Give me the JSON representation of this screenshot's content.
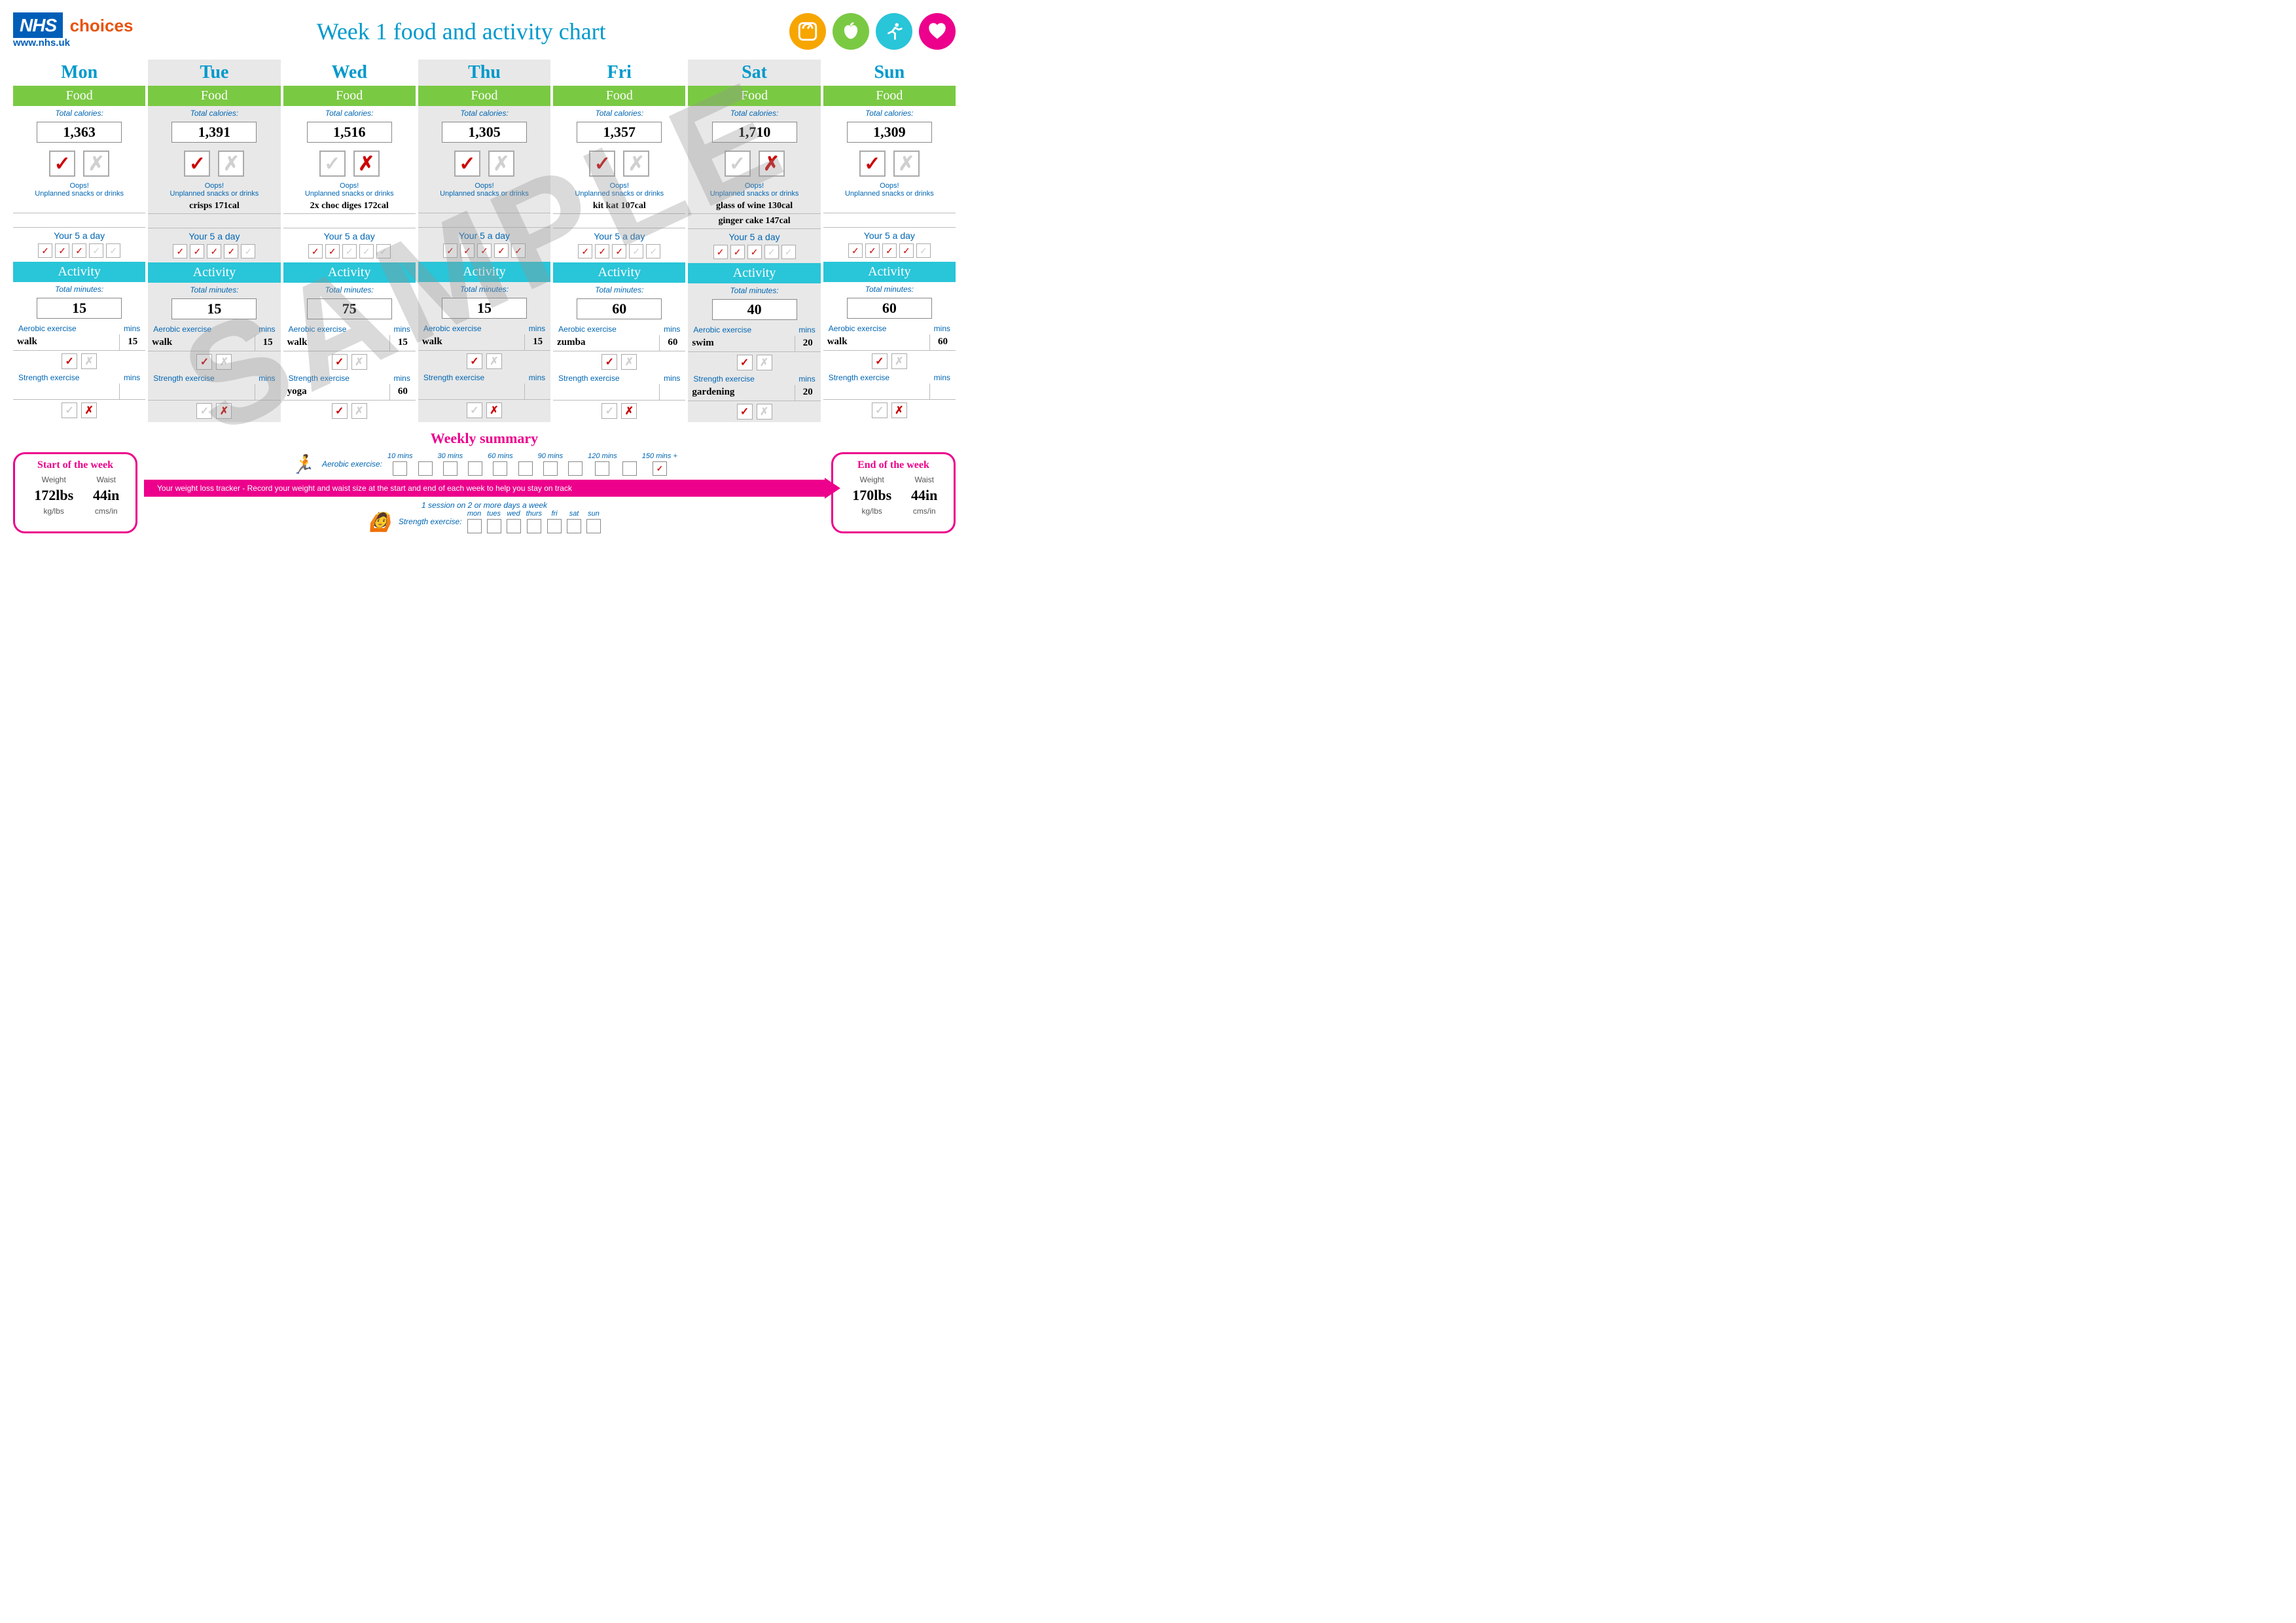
{
  "colors": {
    "nhs_blue": "#005eb8",
    "choices_orange": "#e8530e",
    "title_blue": "#0099cc",
    "link_blue": "#0066b3",
    "green": "#7ac943",
    "teal": "#29c5d8",
    "pink": "#ec008c",
    "badge_orange": "#f7a600",
    "badge_green": "#7ac943",
    "badge_teal": "#29c5d8",
    "badge_pink": "#ec008c",
    "tick_red": "#cc0000",
    "inactive_grey": "#d0d0d0",
    "watermark_grey": "rgba(150,150,150,0.35)"
  },
  "header": {
    "nhs": "NHS",
    "choices": "choices",
    "url": "www.nhs.uk",
    "title": "Week 1 food and activity chart"
  },
  "labels": {
    "food": "Food",
    "activity": "Activity",
    "total_cal": "Total calories:",
    "total_min": "Total minutes:",
    "oops": "Oops!",
    "oops_sub": "Unplanned snacks or drinks",
    "five": "Your 5 a day",
    "aerobic": "Aerobic exercise",
    "strength": "Strength exercise",
    "mins": "mins"
  },
  "watermark": "SAMPLE",
  "days": [
    {
      "name": "Mon",
      "shade": false,
      "cal": "1,363",
      "target": true,
      "snacks": [
        "",
        ""
      ],
      "five": 3,
      "min": "15",
      "aero": {
        "name": "walk",
        "min": "15"
      },
      "aero_ok": true,
      "str": {
        "name": "",
        "min": ""
      },
      "str_ok": false
    },
    {
      "name": "Tue",
      "shade": true,
      "cal": "1,391",
      "target": true,
      "snacks": [
        "crisps 171cal",
        ""
      ],
      "five": 4,
      "min": "15",
      "aero": {
        "name": "walk",
        "min": "15"
      },
      "aero_ok": true,
      "str": {
        "name": "",
        "min": ""
      },
      "str_ok": false
    },
    {
      "name": "Wed",
      "shade": false,
      "cal": "1,516",
      "target": false,
      "snacks": [
        "2x choc diges 172cal",
        ""
      ],
      "five": 2,
      "min": "75",
      "aero": {
        "name": "walk",
        "min": "15"
      },
      "aero_ok": true,
      "str": {
        "name": "yoga",
        "min": "60"
      },
      "str_ok": true
    },
    {
      "name": "Thu",
      "shade": true,
      "cal": "1,305",
      "target": true,
      "snacks": [
        "",
        ""
      ],
      "five": 5,
      "min": "15",
      "aero": {
        "name": "walk",
        "min": "15"
      },
      "aero_ok": true,
      "str": {
        "name": "",
        "min": ""
      },
      "str_ok": false
    },
    {
      "name": "Fri",
      "shade": false,
      "cal": "1,357",
      "target": true,
      "snacks": [
        "kit kat 107cal",
        ""
      ],
      "five": 3,
      "min": "60",
      "aero": {
        "name": "zumba",
        "min": "60"
      },
      "aero_ok": true,
      "str": {
        "name": "",
        "min": ""
      },
      "str_ok": false
    },
    {
      "name": "Sat",
      "shade": true,
      "cal": "1,710",
      "target": false,
      "snacks": [
        "glass of wine 130cal",
        "ginger cake  147cal"
      ],
      "five": 3,
      "min": "40",
      "aero": {
        "name": "swim",
        "min": "20"
      },
      "aero_ok": true,
      "str": {
        "name": "gardening",
        "min": "20"
      },
      "str_ok": true
    },
    {
      "name": "Sun",
      "shade": false,
      "cal": "1,309",
      "target": true,
      "snacks": [
        "",
        ""
      ],
      "five": 4,
      "min": "60",
      "aero": {
        "name": "walk",
        "min": "60"
      },
      "aero_ok": true,
      "str": {
        "name": "",
        "min": ""
      },
      "str_ok": false
    }
  ],
  "summary": {
    "title": "Weekly summary",
    "start": {
      "title": "Start of the week",
      "weight_lbl": "Weight",
      "waist_lbl": "Waist",
      "weight": "172lbs",
      "waist": "44in",
      "u1": "kg/lbs",
      "u2": "cms/in"
    },
    "end": {
      "title": "End of the week",
      "weight_lbl": "Weight",
      "waist_lbl": "Waist",
      "weight": "170lbs",
      "waist": "44in",
      "u1": "kg/lbs",
      "u2": "cms/in"
    },
    "aerobic_lbl": "Aerobic exercise:",
    "aerobic_ticks": [
      "10 mins",
      "",
      "30 mins",
      "",
      "60 mins",
      "",
      "90 mins",
      "",
      "120 mins",
      "",
      "150 mins +"
    ],
    "aerobic_checked": 10,
    "tracker": "Your weight loss tracker - Record your weight and waist size at the start and end of each week to help you stay on track",
    "session_note": "1 session on 2 or more days a week",
    "strength_lbl": "Strength exercise:",
    "strength_days": [
      "mon",
      "tues",
      "wed",
      "thurs",
      "fri",
      "sat",
      "sun"
    ]
  }
}
